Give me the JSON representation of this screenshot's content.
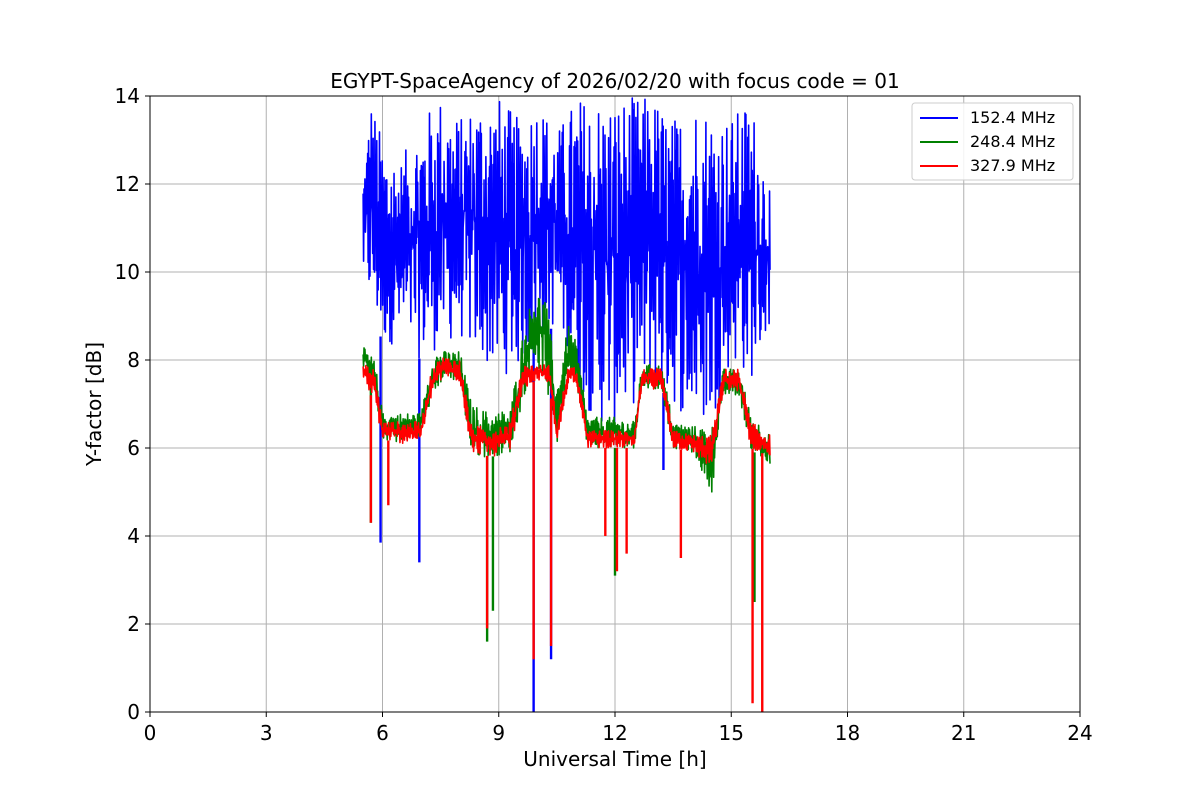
{
  "chart_data": {
    "type": "line",
    "title": "EGYPT-SpaceAgency of 2026/02/20 with focus code = 01",
    "xlabel": "Universal Time [h]",
    "ylabel": "Y-factor [dB]",
    "xlim": [
      0,
      24
    ],
    "ylim": [
      0,
      14
    ],
    "xticks": [
      0,
      3,
      6,
      9,
      12,
      15,
      18,
      21,
      24
    ],
    "yticks": [
      0,
      2,
      4,
      6,
      8,
      10,
      12,
      14
    ],
    "grid": true,
    "legend_position": "top-right",
    "series": [
      {
        "name": " 152.4 MHz",
        "color": "#0000ff",
        "envelope": [
          {
            "x": 5.5,
            "low": 9.8,
            "high": 12.3
          },
          {
            "x": 5.7,
            "low": 9.2,
            "high": 14.0
          },
          {
            "x": 6.0,
            "low": 8.4,
            "high": 13.0
          },
          {
            "x": 6.5,
            "low": 8.3,
            "high": 12.6
          },
          {
            "x": 7.0,
            "low": 8.0,
            "high": 13.5
          },
          {
            "x": 7.5,
            "low": 8.3,
            "high": 14.0
          },
          {
            "x": 8.0,
            "low": 8.5,
            "high": 13.5
          },
          {
            "x": 8.5,
            "low": 8.0,
            "high": 14.0
          },
          {
            "x": 9.0,
            "low": 7.6,
            "high": 14.0
          },
          {
            "x": 9.5,
            "low": 7.8,
            "high": 13.5
          },
          {
            "x": 10.0,
            "low": 8.5,
            "high": 14.0
          },
          {
            "x": 10.5,
            "low": 8.8,
            "high": 13.2
          },
          {
            "x": 11.0,
            "low": 7.5,
            "high": 14.0
          },
          {
            "x": 11.5,
            "low": 6.5,
            "high": 14.0
          },
          {
            "x": 12.0,
            "low": 6.5,
            "high": 14.0
          },
          {
            "x": 12.5,
            "low": 7.0,
            "high": 14.0
          },
          {
            "x": 13.0,
            "low": 7.5,
            "high": 14.0
          },
          {
            "x": 13.5,
            "low": 7.0,
            "high": 13.5
          },
          {
            "x": 14.0,
            "low": 6.5,
            "high": 14.0
          },
          {
            "x": 14.5,
            "low": 6.5,
            "high": 13.8
          },
          {
            "x": 15.0,
            "low": 8.0,
            "high": 13.5
          },
          {
            "x": 15.5,
            "low": 7.5,
            "high": 14.0
          },
          {
            "x": 16.0,
            "low": 8.8,
            "high": 12.0
          }
        ],
        "dips": [
          {
            "x": 5.95,
            "y": 3.85
          },
          {
            "x": 6.95,
            "y": 3.4
          },
          {
            "x": 9.9,
            "y": 0.0
          },
          {
            "x": 10.35,
            "y": 1.2
          },
          {
            "x": 13.25,
            "y": 5.5
          }
        ]
      },
      {
        "name": " 248.4 MHz",
        "color": "#008000",
        "envelope": [
          {
            "x": 5.5,
            "low": 7.8,
            "high": 8.3
          },
          {
            "x": 5.8,
            "low": 7.2,
            "high": 8.0
          },
          {
            "x": 6.0,
            "low": 6.2,
            "high": 6.8
          },
          {
            "x": 6.5,
            "low": 6.1,
            "high": 6.8
          },
          {
            "x": 7.0,
            "low": 6.3,
            "high": 6.8
          },
          {
            "x": 7.3,
            "low": 7.2,
            "high": 8.2
          },
          {
            "x": 7.6,
            "low": 7.6,
            "high": 8.2
          },
          {
            "x": 8.0,
            "low": 7.5,
            "high": 8.2
          },
          {
            "x": 8.3,
            "low": 5.8,
            "high": 7.0
          },
          {
            "x": 8.8,
            "low": 5.8,
            "high": 6.8
          },
          {
            "x": 9.3,
            "low": 5.9,
            "high": 6.9
          },
          {
            "x": 9.6,
            "low": 7.0,
            "high": 8.5
          },
          {
            "x": 9.9,
            "low": 8.0,
            "high": 9.6
          },
          {
            "x": 10.2,
            "low": 7.5,
            "high": 9.5
          },
          {
            "x": 10.5,
            "low": 6.0,
            "high": 7.5
          },
          {
            "x": 10.8,
            "low": 7.8,
            "high": 8.8
          },
          {
            "x": 11.0,
            "low": 7.5,
            "high": 8.4
          },
          {
            "x": 11.3,
            "low": 6.0,
            "high": 6.7
          },
          {
            "x": 12.0,
            "low": 6.0,
            "high": 6.7
          },
          {
            "x": 12.5,
            "low": 6.0,
            "high": 6.6
          },
          {
            "x": 12.7,
            "low": 7.4,
            "high": 7.9
          },
          {
            "x": 13.2,
            "low": 7.3,
            "high": 7.9
          },
          {
            "x": 13.5,
            "low": 6.0,
            "high": 6.6
          },
          {
            "x": 14.0,
            "low": 5.9,
            "high": 6.5
          },
          {
            "x": 14.5,
            "low": 5.0,
            "high": 6.5
          },
          {
            "x": 14.8,
            "low": 7.2,
            "high": 7.8
          },
          {
            "x": 15.2,
            "low": 7.2,
            "high": 7.8
          },
          {
            "x": 15.5,
            "low": 6.0,
            "high": 6.8
          },
          {
            "x": 16.0,
            "low": 5.5,
            "high": 6.3
          }
        ],
        "dips": [
          {
            "x": 5.7,
            "y": 4.3
          },
          {
            "x": 8.7,
            "y": 1.6
          },
          {
            "x": 8.85,
            "y": 2.3
          },
          {
            "x": 12.0,
            "y": 3.1
          },
          {
            "x": 15.6,
            "y": 2.5
          }
        ]
      },
      {
        "name": " 327.9 MHz",
        "color": "#ff0000",
        "envelope": [
          {
            "x": 5.5,
            "low": 7.6,
            "high": 7.9
          },
          {
            "x": 5.8,
            "low": 7.0,
            "high": 7.8
          },
          {
            "x": 6.0,
            "low": 6.2,
            "high": 6.6
          },
          {
            "x": 6.5,
            "low": 6.1,
            "high": 6.6
          },
          {
            "x": 7.0,
            "low": 6.2,
            "high": 6.6
          },
          {
            "x": 7.3,
            "low": 7.3,
            "high": 7.9
          },
          {
            "x": 7.6,
            "low": 7.6,
            "high": 8.1
          },
          {
            "x": 8.0,
            "low": 7.5,
            "high": 8.0
          },
          {
            "x": 8.3,
            "low": 5.9,
            "high": 6.5
          },
          {
            "x": 8.8,
            "low": 5.8,
            "high": 6.5
          },
          {
            "x": 9.3,
            "low": 5.9,
            "high": 6.6
          },
          {
            "x": 9.6,
            "low": 7.3,
            "high": 7.9
          },
          {
            "x": 9.9,
            "low": 7.5,
            "high": 7.9
          },
          {
            "x": 10.3,
            "low": 7.5,
            "high": 7.9
          },
          {
            "x": 10.5,
            "low": 6.0,
            "high": 6.6
          },
          {
            "x": 10.8,
            "low": 7.5,
            "high": 7.9
          },
          {
            "x": 11.0,
            "low": 7.5,
            "high": 7.8
          },
          {
            "x": 11.3,
            "low": 6.0,
            "high": 6.4
          },
          {
            "x": 12.0,
            "low": 6.0,
            "high": 6.4
          },
          {
            "x": 12.5,
            "low": 6.0,
            "high": 6.4
          },
          {
            "x": 12.7,
            "low": 7.4,
            "high": 7.8
          },
          {
            "x": 13.2,
            "low": 7.3,
            "high": 7.8
          },
          {
            "x": 13.5,
            "low": 6.0,
            "high": 6.4
          },
          {
            "x": 14.0,
            "low": 5.9,
            "high": 6.3
          },
          {
            "x": 14.5,
            "low": 5.5,
            "high": 6.3
          },
          {
            "x": 14.8,
            "low": 7.3,
            "high": 7.8
          },
          {
            "x": 15.2,
            "low": 7.3,
            "high": 7.8
          },
          {
            "x": 15.5,
            "low": 6.0,
            "high": 6.6
          },
          {
            "x": 16.0,
            "low": 5.8,
            "high": 6.3
          }
        ],
        "dips": [
          {
            "x": 5.7,
            "y": 4.3
          },
          {
            "x": 6.15,
            "y": 4.7
          },
          {
            "x": 8.7,
            "y": 1.9
          },
          {
            "x": 9.9,
            "y": 1.2
          },
          {
            "x": 10.35,
            "y": 1.5
          },
          {
            "x": 11.75,
            "y": 4.0
          },
          {
            "x": 12.05,
            "y": 3.2
          },
          {
            "x": 12.3,
            "y": 3.6
          },
          {
            "x": 13.7,
            "y": 3.5
          },
          {
            "x": 15.55,
            "y": 0.2
          },
          {
            "x": 15.8,
            "y": 0.0
          }
        ]
      }
    ]
  }
}
